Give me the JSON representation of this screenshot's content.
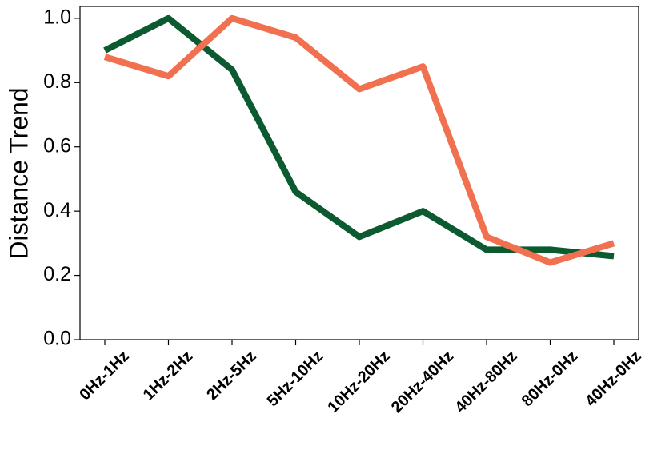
{
  "chart_data": {
    "type": "line",
    "y_label": "Distance Trend",
    "categories": [
      "0Hz-1Hz",
      "1Hz-2Hz",
      "2Hz-5Hz",
      "5Hz-10Hz",
      "10Hz-20Hz",
      "20Hz-40Hz",
      "40Hz-80Hz",
      "80Hz-0Hz",
      "40Hz-0Hz"
    ],
    "series": [
      {
        "color": "#0b5a30",
        "values": [
          0.9,
          1.0,
          0.84,
          0.46,
          0.32,
          0.4,
          0.28,
          0.28,
          0.26
        ]
      },
      {
        "color": "#f07050",
        "values": [
          0.88,
          0.82,
          1.0,
          0.94,
          0.78,
          0.85,
          0.32,
          0.24,
          0.3
        ]
      }
    ],
    "ylim": [
      0,
      1.037
    ],
    "yticks": [
      {
        "value": 0,
        "label": "0.0"
      },
      0.2,
      0.4,
      0.6,
      0.8,
      {
        "value": 1,
        "label": "1.0"
      }
    ]
  }
}
